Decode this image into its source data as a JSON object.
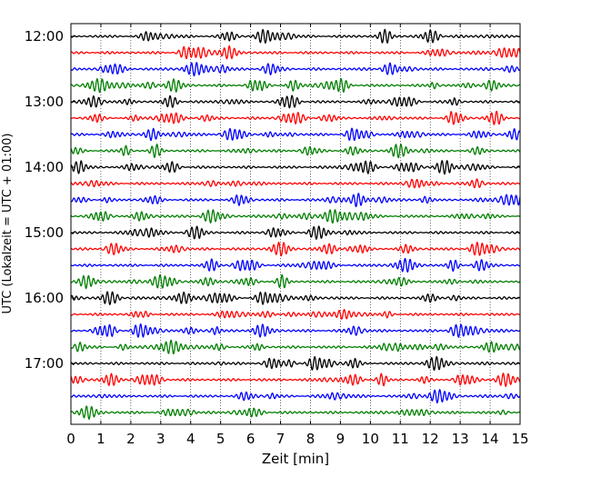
{
  "chart_data": {
    "type": "line",
    "xlabel": "Zeit  [min]",
    "ylabel": "UTC (Lokalzeit = UTC + 01:00)",
    "xlim": [
      0,
      15
    ],
    "x_ticks": [
      0,
      1,
      2,
      3,
      4,
      5,
      6,
      7,
      8,
      9,
      10,
      11,
      12,
      13,
      14,
      15
    ],
    "y_tick_labels": [
      "12:00",
      "13:00",
      "14:00",
      "15:00",
      "16:00",
      "17:00"
    ],
    "grid": "vertical-dotted",
    "trace_colors": [
      "#000000",
      "#ff0000",
      "#0000ff",
      "#007f00"
    ],
    "traces": [
      {
        "start_utc": "12:00",
        "color": "#000000"
      },
      {
        "start_utc": "12:15",
        "color": "#ff0000"
      },
      {
        "start_utc": "12:30",
        "color": "#0000ff"
      },
      {
        "start_utc": "12:45",
        "color": "#007f00"
      },
      {
        "start_utc": "13:00",
        "color": "#000000"
      },
      {
        "start_utc": "13:15",
        "color": "#ff0000"
      },
      {
        "start_utc": "13:30",
        "color": "#0000ff"
      },
      {
        "start_utc": "13:45",
        "color": "#007f00"
      },
      {
        "start_utc": "14:00",
        "color": "#000000"
      },
      {
        "start_utc": "14:15",
        "color": "#ff0000"
      },
      {
        "start_utc": "14:30",
        "color": "#0000ff"
      },
      {
        "start_utc": "14:45",
        "color": "#007f00"
      },
      {
        "start_utc": "15:00",
        "color": "#000000"
      },
      {
        "start_utc": "15:15",
        "color": "#ff0000"
      },
      {
        "start_utc": "15:30",
        "color": "#0000ff"
      },
      {
        "start_utc": "15:45",
        "color": "#007f00"
      },
      {
        "start_utc": "16:00",
        "color": "#000000"
      },
      {
        "start_utc": "16:15",
        "color": "#ff0000"
      },
      {
        "start_utc": "16:30",
        "color": "#0000ff"
      },
      {
        "start_utc": "16:45",
        "color": "#007f00"
      },
      {
        "start_utc": "17:00",
        "color": "#000000"
      },
      {
        "start_utc": "17:15",
        "color": "#ff0000"
      },
      {
        "start_utc": "17:30",
        "color": "#0000ff"
      },
      {
        "start_utc": "17:45",
        "color": "#007f00"
      }
    ]
  }
}
